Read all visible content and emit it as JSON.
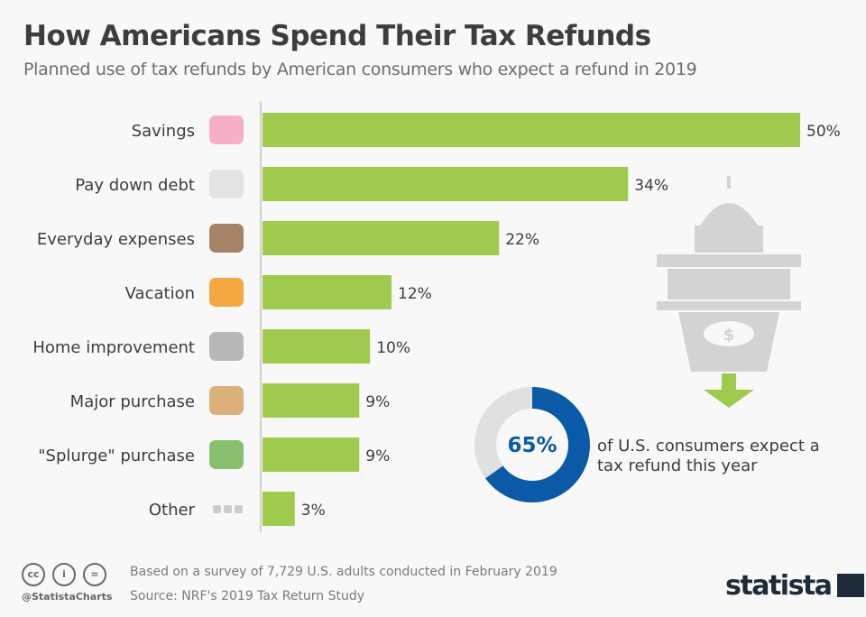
{
  "title": "How Americans Spend Their Tax Refunds",
  "subtitle": "Planned use of tax refunds by American consumers who expect a refund in 2019",
  "chart_data": {
    "type": "bar",
    "orientation": "horizontal",
    "categories": [
      "Savings",
      "Pay down debt",
      "Everyday expenses",
      "Vacation",
      "Home improvement",
      "Major purchase",
      "\"Splurge\" purchase",
      "Other"
    ],
    "values": [
      50,
      34,
      22,
      12,
      10,
      9,
      9,
      3
    ],
    "value_labels": [
      "50%",
      "34%",
      "22%",
      "12%",
      "10%",
      "9%",
      "9%",
      "3%"
    ],
    "icons": [
      "piggy-bank-icon",
      "bill-icon",
      "wallet-icon",
      "beach-chair-icon",
      "tools-icon",
      "box-icon",
      "shopping-icon",
      "ellipsis-icon"
    ],
    "xlim": [
      0,
      50
    ],
    "grid": false,
    "bar_color": "#9ecb4e"
  },
  "callout": {
    "value": 65,
    "label": "65%",
    "text": "of U.S. consumers expect a tax refund this year",
    "color": "#0a5aa8",
    "rest_color": "#e0e0e0"
  },
  "footer": {
    "note": "Based on a survey of 7,729 U.S. adults conducted in February 2019",
    "source": "Source: NRF's 2019 Tax Return Study",
    "handle": "@StatistaCharts",
    "logo": "statista"
  }
}
